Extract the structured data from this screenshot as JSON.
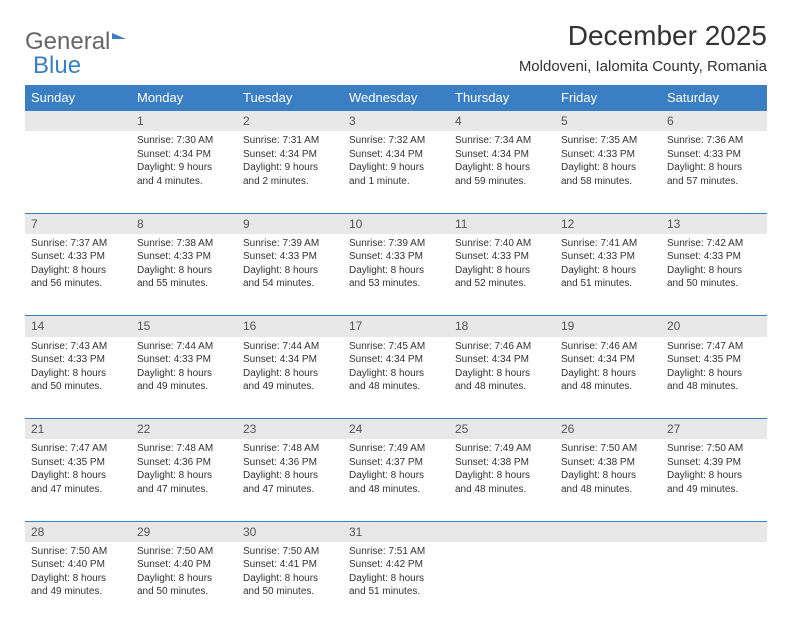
{
  "logo": {
    "part1": "General",
    "part2": "Blue"
  },
  "title": "December 2025",
  "location": "Moldoveni, Ialomita County, Romania",
  "weekdays": [
    "Sunday",
    "Monday",
    "Tuesday",
    "Wednesday",
    "Thursday",
    "Friday",
    "Saturday"
  ],
  "colors": {
    "header_bg": "#3a7fc4",
    "header_text": "#ffffff",
    "daynum_bg": "#e8e8e8",
    "divider": "#3a7fc4",
    "text": "#333333"
  },
  "weeks": [
    {
      "nums": [
        "",
        "1",
        "2",
        "3",
        "4",
        "5",
        "6"
      ],
      "cells": [
        null,
        {
          "sr": "Sunrise: 7:30 AM",
          "ss": "Sunset: 4:34 PM",
          "dl1": "Daylight: 9 hours",
          "dl2": "and 4 minutes."
        },
        {
          "sr": "Sunrise: 7:31 AM",
          "ss": "Sunset: 4:34 PM",
          "dl1": "Daylight: 9 hours",
          "dl2": "and 2 minutes."
        },
        {
          "sr": "Sunrise: 7:32 AM",
          "ss": "Sunset: 4:34 PM",
          "dl1": "Daylight: 9 hours",
          "dl2": "and 1 minute."
        },
        {
          "sr": "Sunrise: 7:34 AM",
          "ss": "Sunset: 4:34 PM",
          "dl1": "Daylight: 8 hours",
          "dl2": "and 59 minutes."
        },
        {
          "sr": "Sunrise: 7:35 AM",
          "ss": "Sunset: 4:33 PM",
          "dl1": "Daylight: 8 hours",
          "dl2": "and 58 minutes."
        },
        {
          "sr": "Sunrise: 7:36 AM",
          "ss": "Sunset: 4:33 PM",
          "dl1": "Daylight: 8 hours",
          "dl2": "and 57 minutes."
        }
      ]
    },
    {
      "nums": [
        "7",
        "8",
        "9",
        "10",
        "11",
        "12",
        "13"
      ],
      "cells": [
        {
          "sr": "Sunrise: 7:37 AM",
          "ss": "Sunset: 4:33 PM",
          "dl1": "Daylight: 8 hours",
          "dl2": "and 56 minutes."
        },
        {
          "sr": "Sunrise: 7:38 AM",
          "ss": "Sunset: 4:33 PM",
          "dl1": "Daylight: 8 hours",
          "dl2": "and 55 minutes."
        },
        {
          "sr": "Sunrise: 7:39 AM",
          "ss": "Sunset: 4:33 PM",
          "dl1": "Daylight: 8 hours",
          "dl2": "and 54 minutes."
        },
        {
          "sr": "Sunrise: 7:39 AM",
          "ss": "Sunset: 4:33 PM",
          "dl1": "Daylight: 8 hours",
          "dl2": "and 53 minutes."
        },
        {
          "sr": "Sunrise: 7:40 AM",
          "ss": "Sunset: 4:33 PM",
          "dl1": "Daylight: 8 hours",
          "dl2": "and 52 minutes."
        },
        {
          "sr": "Sunrise: 7:41 AM",
          "ss": "Sunset: 4:33 PM",
          "dl1": "Daylight: 8 hours",
          "dl2": "and 51 minutes."
        },
        {
          "sr": "Sunrise: 7:42 AM",
          "ss": "Sunset: 4:33 PM",
          "dl1": "Daylight: 8 hours",
          "dl2": "and 50 minutes."
        }
      ]
    },
    {
      "nums": [
        "14",
        "15",
        "16",
        "17",
        "18",
        "19",
        "20"
      ],
      "cells": [
        {
          "sr": "Sunrise: 7:43 AM",
          "ss": "Sunset: 4:33 PM",
          "dl1": "Daylight: 8 hours",
          "dl2": "and 50 minutes."
        },
        {
          "sr": "Sunrise: 7:44 AM",
          "ss": "Sunset: 4:33 PM",
          "dl1": "Daylight: 8 hours",
          "dl2": "and 49 minutes."
        },
        {
          "sr": "Sunrise: 7:44 AM",
          "ss": "Sunset: 4:34 PM",
          "dl1": "Daylight: 8 hours",
          "dl2": "and 49 minutes."
        },
        {
          "sr": "Sunrise: 7:45 AM",
          "ss": "Sunset: 4:34 PM",
          "dl1": "Daylight: 8 hours",
          "dl2": "and 48 minutes."
        },
        {
          "sr": "Sunrise: 7:46 AM",
          "ss": "Sunset: 4:34 PM",
          "dl1": "Daylight: 8 hours",
          "dl2": "and 48 minutes."
        },
        {
          "sr": "Sunrise: 7:46 AM",
          "ss": "Sunset: 4:34 PM",
          "dl1": "Daylight: 8 hours",
          "dl2": "and 48 minutes."
        },
        {
          "sr": "Sunrise: 7:47 AM",
          "ss": "Sunset: 4:35 PM",
          "dl1": "Daylight: 8 hours",
          "dl2": "and 48 minutes."
        }
      ]
    },
    {
      "nums": [
        "21",
        "22",
        "23",
        "24",
        "25",
        "26",
        "27"
      ],
      "cells": [
        {
          "sr": "Sunrise: 7:47 AM",
          "ss": "Sunset: 4:35 PM",
          "dl1": "Daylight: 8 hours",
          "dl2": "and 47 minutes."
        },
        {
          "sr": "Sunrise: 7:48 AM",
          "ss": "Sunset: 4:36 PM",
          "dl1": "Daylight: 8 hours",
          "dl2": "and 47 minutes."
        },
        {
          "sr": "Sunrise: 7:48 AM",
          "ss": "Sunset: 4:36 PM",
          "dl1": "Daylight: 8 hours",
          "dl2": "and 47 minutes."
        },
        {
          "sr": "Sunrise: 7:49 AM",
          "ss": "Sunset: 4:37 PM",
          "dl1": "Daylight: 8 hours",
          "dl2": "and 48 minutes."
        },
        {
          "sr": "Sunrise: 7:49 AM",
          "ss": "Sunset: 4:38 PM",
          "dl1": "Daylight: 8 hours",
          "dl2": "and 48 minutes."
        },
        {
          "sr": "Sunrise: 7:50 AM",
          "ss": "Sunset: 4:38 PM",
          "dl1": "Daylight: 8 hours",
          "dl2": "and 48 minutes."
        },
        {
          "sr": "Sunrise: 7:50 AM",
          "ss": "Sunset: 4:39 PM",
          "dl1": "Daylight: 8 hours",
          "dl2": "and 49 minutes."
        }
      ]
    },
    {
      "nums": [
        "28",
        "29",
        "30",
        "31",
        "",
        "",
        ""
      ],
      "cells": [
        {
          "sr": "Sunrise: 7:50 AM",
          "ss": "Sunset: 4:40 PM",
          "dl1": "Daylight: 8 hours",
          "dl2": "and 49 minutes."
        },
        {
          "sr": "Sunrise: 7:50 AM",
          "ss": "Sunset: 4:40 PM",
          "dl1": "Daylight: 8 hours",
          "dl2": "and 50 minutes."
        },
        {
          "sr": "Sunrise: 7:50 AM",
          "ss": "Sunset: 4:41 PM",
          "dl1": "Daylight: 8 hours",
          "dl2": "and 50 minutes."
        },
        {
          "sr": "Sunrise: 7:51 AM",
          "ss": "Sunset: 4:42 PM",
          "dl1": "Daylight: 8 hours",
          "dl2": "and 51 minutes."
        },
        null,
        null,
        null
      ]
    }
  ]
}
